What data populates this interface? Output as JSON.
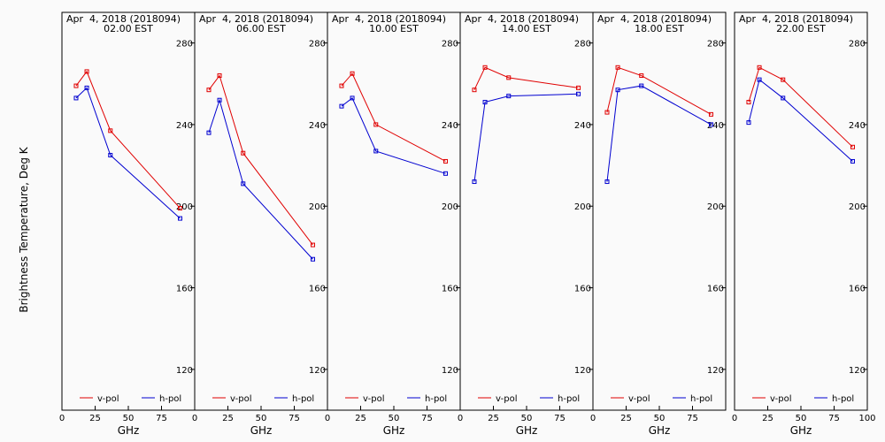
{
  "chart_data": {
    "type": "line",
    "ylabel": "Brightness Temperature, Deg K",
    "xlabel": "GHz",
    "ylim": [
      100,
      295
    ],
    "xlim": [
      0,
      100
    ],
    "yticks": [
      120,
      160,
      200,
      240,
      280
    ],
    "xticks": [
      0,
      25,
      50,
      75,
      100
    ],
    "x": [
      10.65,
      18.7,
      36.5,
      89.0
    ],
    "legend": [
      "v-pol",
      "h-pol"
    ],
    "colors": {
      "v-pol": "#e00000",
      "h-pol": "#0000d0"
    },
    "panels": [
      {
        "title_line1": "Apr  4, 2018 (2018094)",
        "title_line2": "02.00 EST",
        "series": [
          {
            "name": "v-pol",
            "values": [
              259,
              266,
              237,
              199
            ]
          },
          {
            "name": "h-pol",
            "values": [
              253,
              258,
              225,
              194
            ]
          }
        ]
      },
      {
        "title_line1": "Apr  4, 2018 (2018094)",
        "title_line2": "06.00 EST",
        "series": [
          {
            "name": "v-pol",
            "values": [
              257,
              264,
              226,
              181
            ]
          },
          {
            "name": "h-pol",
            "values": [
              236,
              252,
              211,
              174
            ]
          }
        ]
      },
      {
        "title_line1": "Apr  4, 2018 (2018094)",
        "title_line2": "10.00 EST",
        "series": [
          {
            "name": "v-pol",
            "values": [
              259,
              265,
              240,
              222
            ]
          },
          {
            "name": "h-pol",
            "values": [
              249,
              253,
              227,
              216
            ]
          }
        ]
      },
      {
        "title_line1": "Apr  4, 2018 (2018094)",
        "title_line2": "14.00 EST",
        "series": [
          {
            "name": "v-pol",
            "values": [
              257,
              268,
              263,
              258
            ]
          },
          {
            "name": "h-pol",
            "values": [
              212,
              251,
              254,
              255
            ]
          }
        ]
      },
      {
        "title_line1": "Apr  4, 2018 (2018094)",
        "title_line2": "18.00 EST",
        "series": [
          {
            "name": "v-pol",
            "values": [
              246,
              268,
              264,
              245
            ]
          },
          {
            "name": "h-pol",
            "values": [
              212,
              257,
              259,
              240
            ]
          }
        ]
      },
      {
        "title_line1": "Apr  4, 2018 (2018094)",
        "title_line2": "22.00 EST",
        "series": [
          {
            "name": "v-pol",
            "values": [
              251,
              268,
              262,
              229
            ]
          },
          {
            "name": "h-pol",
            "values": [
              241,
              262,
              253,
              222
            ]
          }
        ]
      }
    ]
  }
}
